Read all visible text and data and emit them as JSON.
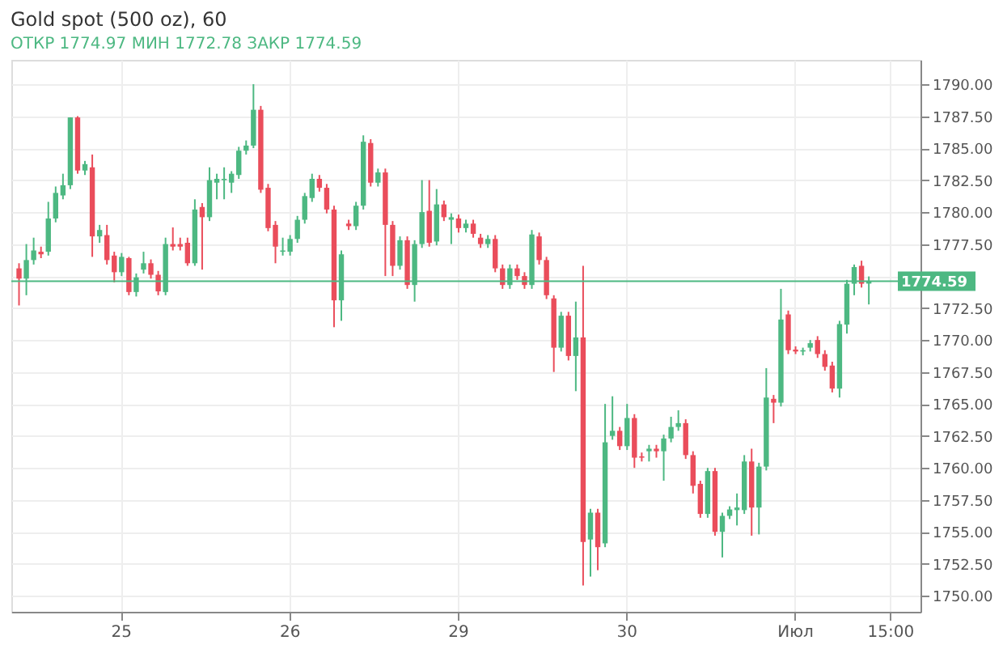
{
  "chart_data": {
    "type": "candlestick",
    "title": "Gold spot (500 oz), 60",
    "annotations": [
      "ОТКР",
      "1774.97",
      "МИН 1772.78",
      "ЗАКР 1774.59"
    ],
    "categories": [
      null,
      null,
      null,
      null,
      null,
      null,
      null,
      null,
      null,
      null,
      null,
      null,
      null,
      null,
      "25",
      null,
      null,
      null,
      null,
      null,
      null,
      null,
      null,
      null,
      null,
      null,
      null,
      null,
      null,
      null,
      null,
      null,
      null,
      null,
      null,
      null,
      null,
      "26",
      null,
      null,
      null,
      null,
      null,
      null,
      null,
      null,
      null,
      null,
      null,
      null,
      null,
      null,
      null,
      null,
      null,
      null,
      null,
      null,
      null,
      null,
      "29",
      null,
      null,
      null,
      null,
      null,
      null,
      null,
      null,
      null,
      null,
      null,
      null,
      null,
      null,
      null,
      null,
      null,
      null,
      null,
      null,
      null,
      null,
      "30",
      null,
      null,
      null,
      null,
      null,
      null,
      null,
      null,
      null,
      null,
      null,
      null,
      null,
      null,
      null,
      null,
      null,
      null,
      null,
      null,
      null,
      null,
      "Июл",
      null,
      null,
      null,
      null,
      null,
      null,
      null,
      null,
      null,
      null,
      null,
      null,
      "15:00",
      null,
      null,
      null
    ],
    "ohlc": [
      [
        1775.6,
        1776.0,
        1772.7,
        1774.8
      ],
      [
        1774.8,
        1777.5,
        1773.5,
        1776.25
      ],
      [
        1776.25,
        1778.0,
        1775.9,
        1777.0
      ],
      [
        1776.9,
        1777.3,
        1776.4,
        1776.7
      ],
      [
        1776.9,
        1780.8,
        1776.6,
        1779.5
      ],
      [
        1779.5,
        1782.0,
        1779.2,
        1781.5
      ],
      [
        1781.3,
        1783.0,
        1781.0,
        1782.1
      ],
      [
        1782.1,
        1787.4,
        1781.8,
        1787.4
      ],
      [
        1787.4,
        1787.5,
        1783.0,
        1783.25
      ],
      [
        1783.25,
        1784.0,
        1782.9,
        1783.75
      ],
      [
        1783.5,
        1784.5,
        1776.5,
        1778.1
      ],
      [
        1778.1,
        1779.0,
        1777.6,
        1778.6
      ],
      [
        1778.2,
        1779.0,
        1775.9,
        1776.25
      ],
      [
        1776.6,
        1776.9,
        1774.5,
        1775.3
      ],
      [
        1775.3,
        1776.8,
        1775.0,
        1776.5
      ],
      [
        1776.4,
        1776.5,
        1773.5,
        1773.75
      ],
      [
        1773.75,
        1775.2,
        1773.4,
        1774.9
      ],
      [
        1775.5,
        1776.9,
        1775.2,
        1776.0
      ],
      [
        1776.0,
        1776.3,
        1774.8,
        1775.1
      ],
      [
        1775.1,
        1775.4,
        1773.5,
        1773.8
      ],
      [
        1773.75,
        1778.0,
        1773.5,
        1777.5
      ],
      [
        1777.5,
        1778.8,
        1777.0,
        1777.3
      ],
      [
        1777.5,
        1778.0,
        1777.0,
        1777.3
      ],
      [
        1777.6,
        1778.0,
        1775.8,
        1776.0
      ],
      [
        1776.0,
        1781.0,
        1775.8,
        1780.2
      ],
      [
        1780.4,
        1780.7,
        1775.5,
        1779.6
      ],
      [
        1779.6,
        1783.5,
        1779.3,
        1782.5
      ],
      [
        1782.3,
        1783.0,
        1781.0,
        1782.6
      ],
      [
        1782.5,
        1783.5,
        1781.0,
        1782.6
      ],
      [
        1782.3,
        1783.2,
        1781.5,
        1783.0
      ],
      [
        1782.9,
        1785.1,
        1782.6,
        1784.8
      ],
      [
        1784.8,
        1785.6,
        1784.5,
        1785.2
      ],
      [
        1785.2,
        1790.0,
        1785.0,
        1788.0
      ],
      [
        1788.0,
        1788.3,
        1781.5,
        1781.75
      ],
      [
        1781.9,
        1782.2,
        1778.5,
        1778.75
      ],
      [
        1779.0,
        1779.3,
        1776.0,
        1777.3
      ],
      [
        1776.9,
        1778.0,
        1776.6,
        1777.0
      ],
      [
        1776.9,
        1778.2,
        1776.6,
        1777.9
      ],
      [
        1777.9,
        1779.7,
        1777.6,
        1779.4
      ],
      [
        1779.4,
        1781.5,
        1779.1,
        1781.25
      ],
      [
        1781.1,
        1783.0,
        1780.8,
        1782.6
      ],
      [
        1782.6,
        1782.9,
        1781.6,
        1781.9
      ],
      [
        1781.9,
        1782.2,
        1779.9,
        1780.2
      ],
      [
        1780.2,
        1780.5,
        1771.0,
        1773.1
      ],
      [
        1773.1,
        1777.0,
        1771.5,
        1776.7
      ],
      [
        1779.1,
        1779.4,
        1778.6,
        1778.9
      ],
      [
        1778.9,
        1780.8,
        1778.6,
        1780.5
      ],
      [
        1780.5,
        1786.0,
        1780.2,
        1785.5
      ],
      [
        1785.4,
        1785.7,
        1782.0,
        1782.3
      ],
      [
        1782.3,
        1783.4,
        1782.0,
        1783.1
      ],
      [
        1783.1,
        1783.4,
        1775.0,
        1779.0
      ],
      [
        1779.0,
        1779.3,
        1775.0,
        1775.8
      ],
      [
        1775.8,
        1778.1,
        1775.5,
        1777.8
      ],
      [
        1777.8,
        1778.1,
        1774.0,
        1774.3
      ],
      [
        1774.3,
        1777.8,
        1773.0,
        1777.5
      ],
      [
        1777.5,
        1782.5,
        1777.2,
        1780.0
      ],
      [
        1780.1,
        1782.5,
        1777.3,
        1777.6
      ],
      [
        1777.7,
        1781.8,
        1777.4,
        1780.6
      ],
      [
        1780.6,
        1780.9,
        1779.3,
        1779.6
      ],
      [
        1779.4,
        1779.9,
        1777.5,
        1779.6
      ],
      [
        1779.5,
        1779.8,
        1778.4,
        1778.75
      ],
      [
        1778.75,
        1779.4,
        1778.4,
        1779.1
      ],
      [
        1779.1,
        1779.4,
        1778.0,
        1778.3
      ],
      [
        1778.0,
        1778.3,
        1777.2,
        1777.5
      ],
      [
        1777.5,
        1778.2,
        1777.2,
        1777.9
      ],
      [
        1777.9,
        1778.2,
        1775.3,
        1775.6
      ],
      [
        1775.6,
        1775.9,
        1774.0,
        1774.3
      ],
      [
        1774.3,
        1775.9,
        1774.0,
        1775.6
      ],
      [
        1775.6,
        1775.9,
        1774.7,
        1775.0
      ],
      [
        1775.0,
        1775.3,
        1774.0,
        1774.3
      ],
      [
        1774.3,
        1778.6,
        1774.0,
        1778.25
      ],
      [
        1778.1,
        1778.4,
        1775.9,
        1776.25
      ],
      [
        1776.25,
        1776.5,
        1773.2,
        1773.5
      ],
      [
        1773.25,
        1773.5,
        1767.5,
        1769.4
      ],
      [
        1769.4,
        1772.2,
        1769.1,
        1771.9
      ],
      [
        1771.9,
        1772.2,
        1768.4,
        1768.75
      ],
      [
        1768.75,
        1773.0,
        1766.0,
        1770.2
      ],
      [
        1770.2,
        1775.8,
        1750.8,
        1754.2
      ],
      [
        1754.4,
        1756.8,
        1751.5,
        1756.5
      ],
      [
        1756.5,
        1756.8,
        1752.0,
        1753.8
      ],
      [
        1754.1,
        1765.0,
        1753.8,
        1762.0
      ],
      [
        1762.5,
        1765.6,
        1762.2,
        1762.9
      ],
      [
        1762.9,
        1763.2,
        1761.4,
        1761.7
      ],
      [
        1761.7,
        1765.0,
        1761.4,
        1763.9
      ],
      [
        1763.9,
        1764.2,
        1760.0,
        1760.8
      ],
      [
        1760.9,
        1761.2,
        1760.5,
        1760.8
      ],
      [
        1761.3,
        1761.8,
        1760.5,
        1761.5
      ],
      [
        1761.5,
        1761.8,
        1760.8,
        1761.3
      ],
      [
        1761.3,
        1762.6,
        1759.0,
        1762.3
      ],
      [
        1762.3,
        1764.0,
        1762.0,
        1763.2
      ],
      [
        1763.2,
        1764.5,
        1762.9,
        1763.5
      ],
      [
        1763.5,
        1763.8,
        1760.7,
        1761.0
      ],
      [
        1761.0,
        1761.3,
        1758.0,
        1758.6
      ],
      [
        1758.75,
        1759.0,
        1756.1,
        1756.4
      ],
      [
        1756.4,
        1760.0,
        1756.1,
        1759.75
      ],
      [
        1759.75,
        1760.0,
        1754.7,
        1755.0
      ],
      [
        1755.0,
        1756.5,
        1753.0,
        1756.25
      ],
      [
        1756.25,
        1757.0,
        1756.0,
        1756.75
      ],
      [
        1756.7,
        1758.0,
        1755.5,
        1756.9
      ],
      [
        1756.7,
        1761.0,
        1756.4,
        1760.5
      ],
      [
        1760.5,
        1761.5,
        1754.7,
        1756.9
      ],
      [
        1756.9,
        1760.4,
        1754.8,
        1760.1
      ],
      [
        1760.1,
        1767.8,
        1759.8,
        1765.5
      ],
      [
        1765.4,
        1765.7,
        1763.5,
        1765.1
      ],
      [
        1765.1,
        1774.0,
        1764.8,
        1771.6
      ],
      [
        1772.0,
        1772.3,
        1768.9,
        1769.2
      ],
      [
        1769.25,
        1769.5,
        1768.9,
        1769.1
      ],
      [
        1769.1,
        1769.4,
        1768.8,
        1769.2
      ],
      [
        1769.4,
        1770.0,
        1769.1,
        1769.75
      ],
      [
        1770.0,
        1770.3,
        1768.6,
        1768.9
      ],
      [
        1768.9,
        1769.2,
        1767.6,
        1767.9
      ],
      [
        1768.0,
        1768.3,
        1765.9,
        1766.2
      ],
      [
        1766.2,
        1771.5,
        1765.5,
        1771.25
      ],
      [
        1771.2,
        1774.7,
        1770.5,
        1774.4
      ],
      [
        1774.4,
        1775.9,
        1773.5,
        1775.7
      ],
      [
        1775.8,
        1776.2,
        1774.1,
        1774.4
      ],
      [
        1774.41,
        1774.97,
        1772.78,
        1774.59
      ],
      null,
      null,
      null,
      null,
      null,
      null
    ],
    "colors": [
      "#ea4d5b",
      "#4db882",
      "#4db882",
      "#ea4d5b",
      "#4db882",
      "#4db882",
      "#4db882",
      "#4db882",
      "#ea4d5b",
      "#4db882",
      "#ea4d5b",
      "#4db882",
      "#ea4d5b",
      "#ea4d5b",
      "#4db882",
      "#ea4d5b",
      "#4db882",
      "#4db882",
      "#ea4d5b",
      "#ea4d5b",
      "#4db882",
      "#ea4d5b",
      "#ea4d5b",
      "#ea4d5b",
      "#4db882",
      "#ea4d5b",
      "#4db882",
      "#4db882",
      "#4db882",
      "#4db882",
      "#4db882",
      "#4db882",
      "#4db882",
      "#ea4d5b",
      "#ea4d5b",
      "#ea4d5b",
      "#4db882",
      "#4db882",
      "#4db882",
      "#4db882",
      "#4db882",
      "#ea4d5b",
      "#ea4d5b",
      "#ea4d5b",
      "#4db882",
      "#ea4d5b",
      "#4db882",
      "#4db882",
      "#ea4d5b",
      "#4db882",
      "#ea4d5b",
      "#ea4d5b",
      "#4db882",
      "#ea4d5b",
      "#4db882",
      "#4db882",
      "#ea4d5b",
      "#4db882",
      "#ea4d5b",
      "#4db882",
      "#ea4d5b",
      "#4db882",
      "#ea4d5b",
      "#ea4d5b",
      "#4db882",
      "#ea4d5b",
      "#ea4d5b",
      "#4db882",
      "#ea4d5b",
      "#ea4d5b",
      "#4db882",
      "#ea4d5b",
      "#ea4d5b",
      "#ea4d5b",
      "#4db882",
      "#ea4d5b",
      "#4db882",
      "#ea4d5b",
      "#4db882",
      "#ea4d5b",
      "#4db882",
      "#4db882",
      "#ea4d5b",
      "#4db882",
      "#ea4d5b",
      "#ea4d5b",
      "#4db882",
      "#ea4d5b",
      "#4db882",
      "#4db882",
      "#4db882",
      "#ea4d5b",
      "#ea4d5b",
      "#ea4d5b",
      "#4db882",
      "#ea4d5b",
      "#4db882",
      "#4db882",
      "#4db882",
      "#4db882",
      "#ea4d5b",
      "#4db882",
      "#4db882",
      "#ea4d5b",
      "#4db882",
      "#ea4d5b",
      "#ea4d5b",
      "#4db882",
      "#4db882",
      "#ea4d5b",
      "#ea4d5b",
      "#ea4d5b",
      "#4db882",
      "#4db882",
      "#4db882",
      "#ea4d5b",
      "#4db882",
      null,
      null,
      null,
      null,
      null,
      null
    ],
    "ylim": [
      1748.75,
      1791.9
    ],
    "yticks": [
      {
        "value": 1750,
        "label": "1750.00"
      },
      {
        "value": 1752.5,
        "label": "1752.50"
      },
      {
        "value": 1755,
        "label": "1755.00"
      },
      {
        "value": 1757.5,
        "label": "1757.50"
      },
      {
        "value": 1760,
        "label": "1760.00"
      },
      {
        "value": 1762.5,
        "label": "1762.50"
      },
      {
        "value": 1765,
        "label": "1765.00"
      },
      {
        "value": 1767.5,
        "label": "1767.50"
      },
      {
        "value": 1770,
        "label": "1770.00"
      },
      {
        "value": 1772.5,
        "label": "1772.50"
      },
      {
        "value": 1775,
        "label": null
      },
      {
        "value": 1777.5,
        "label": "1777.50"
      },
      {
        "value": 1780,
        "label": "1780.00"
      },
      {
        "value": 1782.5,
        "label": "1782.50"
      },
      {
        "value": 1785,
        "label": "1785.00"
      },
      {
        "value": 1787.5,
        "label": "1787.50"
      },
      {
        "value": 1790,
        "label": "1790.00"
      }
    ],
    "ref_lines": [
      {
        "axis": "y",
        "value": 1774.59,
        "label": "1774.59",
        "color": "#4db882"
      }
    ],
    "grid": true
  }
}
